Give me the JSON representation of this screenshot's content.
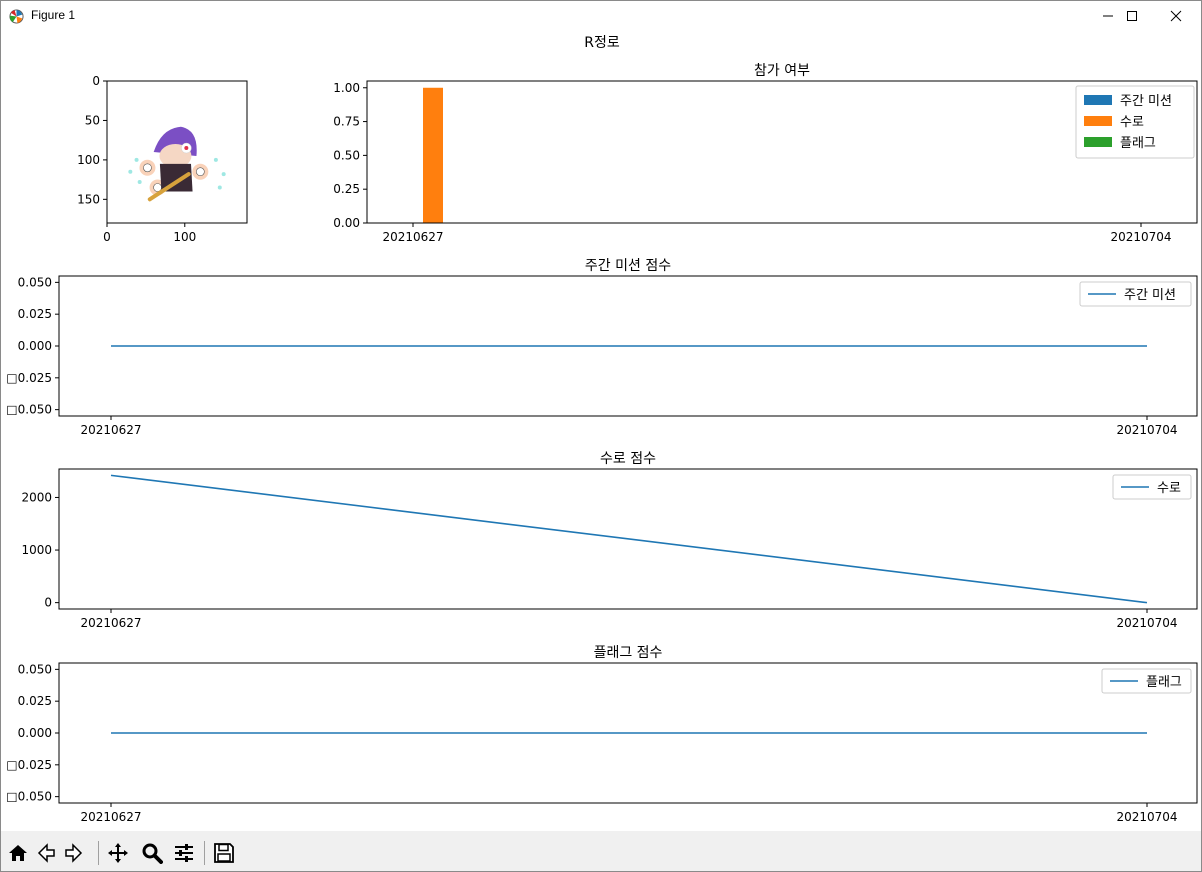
{
  "window": {
    "title": "Figure 1",
    "icons": {
      "app": "matplotlib-icon",
      "minimize": "minimize-icon",
      "maximize": "maximize-icon",
      "close": "close-icon"
    }
  },
  "toolbar": {
    "buttons": [
      {
        "name": "home-icon"
      },
      {
        "name": "back-icon"
      },
      {
        "name": "forward-icon"
      },
      {
        "name": "pan-icon"
      },
      {
        "name": "zoom-icon"
      },
      {
        "name": "configure-subplots-icon"
      },
      {
        "name": "save-icon"
      }
    ]
  },
  "suptitle": "R정로",
  "colors": {
    "blue": "#1f77b4",
    "orange": "#ff7f0e",
    "green": "#2ca02c"
  },
  "chart_data": [
    {
      "type": "image",
      "title": "",
      "xticks": [
        "0",
        "100"
      ],
      "yticks": [
        "0",
        "50",
        "100",
        "150"
      ],
      "xlim": [
        0,
        180
      ],
      "ylim": [
        180,
        0
      ],
      "content": "character-sprite"
    },
    {
      "type": "bar",
      "title": "참가 여부",
      "categories": [
        "20210627",
        "20210704"
      ],
      "series": [
        {
          "name": "주간 미션",
          "values": [
            0,
            0
          ],
          "color": "#1f77b4"
        },
        {
          "name": "수로",
          "values": [
            1,
            0
          ],
          "color": "#ff7f0e"
        },
        {
          "name": "플래그",
          "values": [
            0,
            0
          ],
          "color": "#2ca02c"
        }
      ],
      "yticks": [
        "0.00",
        "0.25",
        "0.50",
        "0.75",
        "1.00"
      ],
      "ylim": [
        0,
        1.05
      ],
      "legend": "top-right"
    },
    {
      "type": "line",
      "title": "주간 미션 점수",
      "x": [
        "20210627",
        "20210704"
      ],
      "series": [
        {
          "name": "주간 미션",
          "values": [
            0,
            0
          ],
          "color": "#1f77b4"
        }
      ],
      "yticks": [
        "0.050",
        "0.025",
        "0.000",
        "□0.025",
        "□0.050"
      ],
      "ylim": [
        -0.055,
        0.055
      ],
      "legend": "top-right"
    },
    {
      "type": "line",
      "title": "수로 점수",
      "x": [
        "20210627",
        "20210704"
      ],
      "series": [
        {
          "name": "수로",
          "values": [
            2420,
            0
          ],
          "color": "#1f77b4"
        }
      ],
      "yticks": [
        "2000",
        "1000",
        "0"
      ],
      "ylim": [
        -121,
        2541
      ],
      "legend": "top-right"
    },
    {
      "type": "line",
      "title": "플래그 점수",
      "x": [
        "20210627",
        "20210704"
      ],
      "series": [
        {
          "name": "플래그",
          "values": [
            0,
            0
          ],
          "color": "#1f77b4"
        }
      ],
      "yticks": [
        "0.050",
        "0.025",
        "0.000",
        "□0.025",
        "□0.050"
      ],
      "ylim": [
        -0.055,
        0.055
      ],
      "legend": "top-right"
    }
  ]
}
